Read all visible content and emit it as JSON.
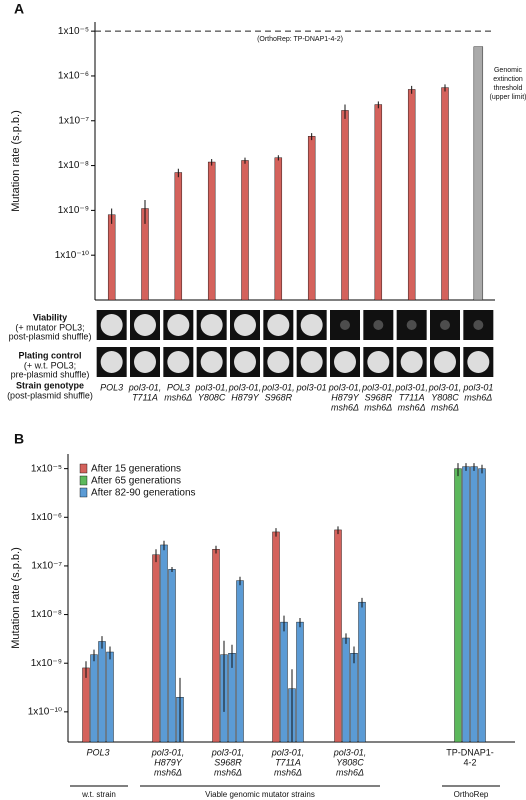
{
  "chart_data": [
    {
      "type": "bar",
      "panel": "A",
      "ylabel": "Mutation rate (s.p.b.)",
      "log_scale": true,
      "ylim": [
        1e-11,
        1.6e-05
      ],
      "yticks": [
        {
          "value": 1e-05,
          "label": "1x10⁻⁵"
        },
        {
          "value": 1e-06,
          "label": "1x10⁻⁶"
        },
        {
          "value": 1e-07,
          "label": "1x10⁻⁷"
        },
        {
          "value": 1e-08,
          "label": "1x10⁻⁸"
        },
        {
          "value": 1e-09,
          "label": "1x10⁻⁹"
        },
        {
          "value": 1e-10,
          "label": "1x10⁻¹⁰"
        }
      ],
      "reference_line": {
        "value": 1e-05,
        "label": "(OrthoRep: TP-DNAP1-4-2)"
      },
      "threshold_label": [
        "Genomic",
        "extinction",
        "threshold",
        "(upper limit)"
      ],
      "categories": [
        [
          "POL3"
        ],
        [
          "pol3-01,",
          "T711A"
        ],
        [
          "POL3",
          "msh6Δ"
        ],
        [
          "pol3-01,",
          "Y808C"
        ],
        [
          "pol3-01,",
          "H879Y"
        ],
        [
          "pol3-01,",
          "S968R"
        ],
        [
          "pol3-01"
        ],
        [
          "pol3-01,",
          "H879Y",
          "msh6Δ"
        ],
        [
          "pol3-01,",
          "S968R",
          "msh6Δ"
        ],
        [
          "pol3-01,",
          "T711A",
          "msh6Δ"
        ],
        [
          "pol3-01,",
          "Y808C",
          "msh6Δ"
        ],
        [
          "pol3-01",
          "msh6Δ"
        ]
      ],
      "values": [
        8e-10,
        1.1e-09,
        7e-09,
        1.2e-08,
        1.3e-08,
        1.5e-08,
        4.5e-08,
        1.7e-07,
        2.3e-07,
        5e-07,
        5.5e-07,
        4.5e-06
      ],
      "errors": [
        3e-10,
        6e-10,
        1.5e-09,
        2e-09,
        2e-09,
        2e-09,
        8e-09,
        6e-08,
        4e-08,
        1e-07,
        1e-07,
        null
      ],
      "colors": [
        "#d4625c",
        "#d4625c",
        "#d4625c",
        "#d4625c",
        "#d4625c",
        "#d4625c",
        "#d4625c",
        "#d4625c",
        "#d4625c",
        "#d4625c",
        "#d4625c",
        "#aaaaaa"
      ],
      "rows": [
        {
          "title": "Viability",
          "subtitle": [
            "(+ mutator POL3;",
            "post-plasmid shuffle)"
          ]
        },
        {
          "title": "Plating control",
          "subtitle": [
            "(+ w.t. POL3;",
            "pre-plasmid shuffle)"
          ]
        },
        {
          "title": "Strain genotype",
          "subtitle": [
            "(post-plasmid shuffle)"
          ]
        }
      ]
    },
    {
      "type": "bar",
      "panel": "B",
      "ylabel": "Mutation rate (s.p.b.)",
      "log_scale": true,
      "ylim": [
        2.4e-11,
        2e-05
      ],
      "yticks": [
        {
          "value": 1e-05,
          "label": "1x10⁻⁵"
        },
        {
          "value": 1e-06,
          "label": "1x10⁻⁶"
        },
        {
          "value": 1e-07,
          "label": "1x10⁻⁷"
        },
        {
          "value": 1e-08,
          "label": "1x10⁻⁸"
        },
        {
          "value": 1e-09,
          "label": "1x10⁻⁹"
        },
        {
          "value": 1e-10,
          "label": "1x10⁻¹⁰"
        }
      ],
      "categories": [
        [
          "POL3"
        ],
        [
          "pol3-01,",
          "H879Y",
          "msh6Δ"
        ],
        [
          "pol3-01,",
          "S968R",
          "msh6Δ"
        ],
        [
          "pol3-01,",
          "T711A",
          "msh6Δ"
        ],
        [
          "pol3-01,",
          "Y808C",
          "msh6Δ"
        ],
        [
          "TP-DNAP1-",
          "4-2"
        ]
      ],
      "series": [
        {
          "name": "After 15 generations",
          "color": "#d4625c",
          "values": [
            8e-10,
            1.7e-07,
            2.2e-07,
            5e-07,
            5.5e-07,
            null
          ],
          "errors": [
            3e-10,
            5e-08,
            4e-08,
            1e-07,
            1e-07,
            null
          ]
        },
        {
          "name": "After 65 generations",
          "color": "#5cb85c",
          "values": [
            null,
            null,
            null,
            null,
            null,
            1e-05
          ],
          "errors": [
            null,
            null,
            null,
            null,
            null,
            3e-06
          ]
        },
        {
          "name": "After 82-90 generations",
          "color": "#5b9bd5",
          "values": [
            [
              1.5e-09,
              2.8e-09,
              1.7e-09
            ],
            [
              2.7e-07,
              8.5e-08,
              2e-10
            ],
            [
              1.5e-09,
              1.6e-09,
              5e-08
            ],
            [
              7e-09,
              3e-10,
              7e-09
            ],
            [
              3.3e-09,
              1.6e-09,
              1.8e-08
            ],
            [
              1.1e-05,
              1.1e-05,
              1e-05
            ]
          ],
          "errors": [
            [
              4e-10,
              8e-10,
              5e-10
            ],
            [
              6e-08,
              1e-08,
              3e-10
            ],
            [
              1.4e-09,
              8e-10,
              1e-08
            ],
            [
              2.5e-09,
              4.5e-10,
              1.5e-09
            ],
            [
              8e-10,
              6e-10,
              4e-09
            ],
            [
              2e-06,
              2e-06,
              2e-06
            ]
          ]
        }
      ],
      "group_labels": [
        {
          "label": "w.t. strain",
          "from": 0,
          "to": 0
        },
        {
          "label": "Viable genomic mutator strains",
          "from": 1,
          "to": 4
        },
        {
          "label": "OrthoRep",
          "from": 5,
          "to": 5
        }
      ]
    }
  ]
}
